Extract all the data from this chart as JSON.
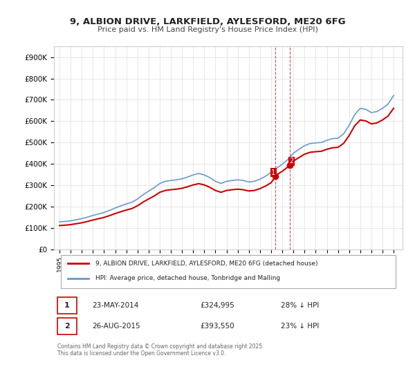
{
  "title1": "9, ALBION DRIVE, LARKFIELD, AYLESFORD, ME20 6FG",
  "title2": "Price paid vs. HM Land Registry's House Price Index (HPI)",
  "ylabel": "",
  "ylim": [
    0,
    950000
  ],
  "yticks": [
    0,
    100000,
    200000,
    300000,
    400000,
    500000,
    600000,
    700000,
    800000,
    900000
  ],
  "ytick_labels": [
    "£0",
    "£100K",
    "£200K",
    "£300K",
    "£400K",
    "£500K",
    "£600K",
    "£700K",
    "£800K",
    "£900K"
  ],
  "sale1_date": 2014.39,
  "sale1_price": 324995,
  "sale1_label": "1",
  "sale1_text": "23-MAY-2014",
  "sale1_price_text": "£324,995",
  "sale1_hpi_text": "28% ↓ HPI",
  "sale2_date": 2015.65,
  "sale2_price": 393550,
  "sale2_label": "2",
  "sale2_text": "26-AUG-2015",
  "sale2_price_text": "£393,550",
  "sale2_hpi_text": "23% ↓ HPI",
  "legend1": "9, ALBION DRIVE, LARKFIELD, AYLESFORD, ME20 6FG (detached house)",
  "legend2": "HPI: Average price, detached house, Tonbridge and Malling",
  "footer": "Contains HM Land Registry data © Crown copyright and database right 2025.\nThis data is licensed under the Open Government Licence v3.0.",
  "line_color_red": "#cc0000",
  "line_color_blue": "#6699cc",
  "background_color": "#ffffff",
  "grid_color": "#dddddd"
}
